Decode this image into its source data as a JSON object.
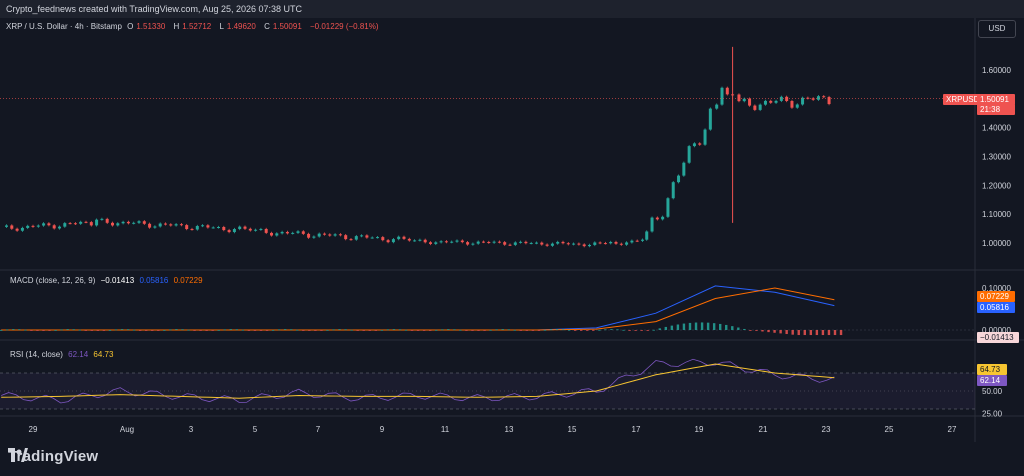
{
  "credit": "Crypto_feednews created with TradingView.com, Aug 25, 2026 07:38 UTC",
  "currency_button": "USD",
  "symbol_legend": {
    "title": "XRP / U.S. Dollar · 4h · Bitstamp",
    "o_label": "O",
    "o": "1.51330",
    "h_label": "H",
    "h": "1.52712",
    "l_label": "L",
    "l": "1.49620",
    "c_label": "C",
    "c": "1.50091",
    "change": "−0.01229 (−0.81%)"
  },
  "price_tag": {
    "symbol": "XRPUSD",
    "price": "1.50091",
    "countdown": "21:38"
  },
  "macd_legend": {
    "title": "MACD (close, 12, 26, 9)",
    "hist": "−0.01413",
    "macd": "0.05816",
    "signal": "0.07229"
  },
  "rsi_legend": {
    "title": "RSI (14, close)",
    "rsi": "62.14",
    "ma": "64.73"
  },
  "logo_text": "TradingView",
  "colors": {
    "up": "#26a69a",
    "down": "#ef5350",
    "macd": "#2962ff",
    "signal": "#ff6d00",
    "rsi": "#7e57c2",
    "rsi_ma": "#f7c531",
    "bg": "#131722"
  },
  "chart_data": [
    {
      "type": "candlestick",
      "title": "XRP / U.S. Dollar · 4h · Bitstamp",
      "x_tick_labels": [
        "29",
        "Aug",
        "3",
        "5",
        "7",
        "9",
        "11",
        "13",
        "15",
        "17",
        "19",
        "21",
        "23",
        "25",
        "27"
      ],
      "y_tick_labels": [
        "1.60000",
        "1.50000",
        "1.40000",
        "1.30000",
        "1.20000",
        "1.10000",
        "1.00000"
      ],
      "ylim": [
        0.96,
        1.7
      ],
      "segments": [
        {
          "from": "Jul 28",
          "to": "Jul 31",
          "level": 1.05
        },
        {
          "from": "Jul 31",
          "to": "Aug 5",
          "level": 1.08
        },
        {
          "from": "Aug 5",
          "to": "Aug 10",
          "level": 1.02
        },
        {
          "from": "Aug 10",
          "to": "Aug 16",
          "level": 1.0
        },
        {
          "from": "Aug 16",
          "to": "Aug 19",
          "level": 1.0
        },
        {
          "from": "Aug 19",
          "to": "Aug 21",
          "level": 1.3
        },
        {
          "from": "Aug 21",
          "to": "Aug 22",
          "level": 1.55
        },
        {
          "from": "Aug 22",
          "to": "Aug 25",
          "level": 1.48
        }
      ],
      "last_close": 1.50091,
      "spike_high": 1.68,
      "spike_low": 1.07
    },
    {
      "type": "line",
      "title": "MACD (close, 12, 26, 9)",
      "y_tick_labels": [
        "0.10000",
        "0.05000",
        "0.00000"
      ],
      "ylim": [
        -0.02,
        0.11
      ],
      "series": [
        {
          "name": "MACD",
          "values": [
            0.0,
            0.0,
            0.0,
            0.0,
            0.0,
            0.0,
            0.0,
            0.0,
            0.0,
            0.0,
            0.005,
            0.04,
            0.105,
            0.09,
            0.058
          ]
        },
        {
          "name": "Signal",
          "values": [
            0.0,
            0.0,
            0.0,
            0.0,
            0.0,
            0.0,
            0.0,
            0.0,
            0.0,
            0.0,
            0.002,
            0.02,
            0.075,
            0.1,
            0.072
          ]
        }
      ],
      "histogram_last": -0.01413
    },
    {
      "type": "line",
      "title": "RSI (14, close)",
      "y_tick_labels": [
        "50.00",
        "25.00"
      ],
      "ylim": [
        20,
        90
      ],
      "bands": [
        30,
        70
      ],
      "series": [
        {
          "name": "RSI",
          "values": [
            45,
            40,
            50,
            44,
            40,
            48,
            42,
            45,
            42,
            44,
            50,
            80,
            82,
            68,
            62.14
          ]
        },
        {
          "name": "RSI MA",
          "values": [
            43,
            44,
            46,
            44,
            42,
            45,
            44,
            44,
            43,
            44,
            50,
            68,
            80,
            70,
            64.73
          ]
        }
      ]
    }
  ]
}
